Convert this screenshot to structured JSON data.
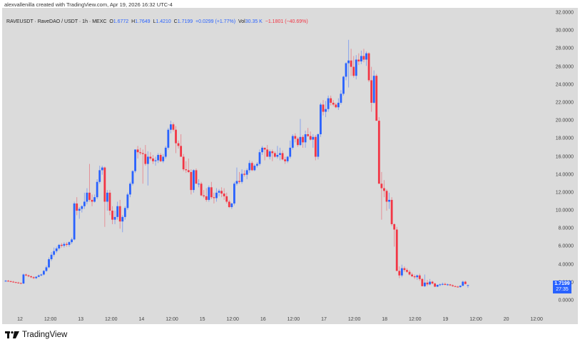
{
  "header": {
    "credit": "alexvallenilla created with TradingView.com, Apr 19, 2026 16:32 UTC-4"
  },
  "legend": {
    "symbol": "RAVEUSDT · RaveDAO / USDT · 1h · MEXC",
    "open_label": "O",
    "open": "1.6772",
    "high_label": "H",
    "high": "1.7649",
    "low_label": "L",
    "low": "1.4210",
    "close_label": "C",
    "close": "1.7199",
    "change": "+0.0299 (+1.77%)",
    "vol_label": "Vol",
    "vol": "30.35 K",
    "extra_change": "−1.1801 (−40.69%)"
  },
  "price_tag": {
    "price": "1.7199",
    "countdown": "27:35"
  },
  "colors": {
    "up": "#2962ff",
    "down": "#f23645",
    "background": "#dbdbdb"
  },
  "footer": {
    "brand": "TradingView"
  },
  "chart_data": {
    "type": "candlestick",
    "title": "RAVEUSDT · RaveDAO / USDT · 1h · MEXC",
    "xlabel": "",
    "ylabel": "",
    "ylim": [
      0,
      32
    ],
    "y_ticks": [
      "32.0000",
      "30.0000",
      "28.0000",
      "26.0000",
      "24.0000",
      "22.0000",
      "20.0000",
      "18.0000",
      "16.0000",
      "14.0000",
      "12.0000",
      "10.0000",
      "8.0000",
      "6.0000",
      "4.0000",
      "2.0000",
      "0.0000"
    ],
    "x_ticks": [
      "12",
      "12:00",
      "13",
      "12:00",
      "14",
      "12:00",
      "15",
      "12:00",
      "16",
      "12:00",
      "17",
      "12:00",
      "18",
      "12:00",
      "19",
      "12:00",
      "20",
      "12:00"
    ],
    "grid": false,
    "last_price": 1.7199,
    "ohlc": [
      [
        2.2,
        2.3,
        2.1,
        2.2
      ],
      [
        2.2,
        2.3,
        2.1,
        2.15
      ],
      [
        2.15,
        2.25,
        2.05,
        2.1
      ],
      [
        2.1,
        2.2,
        2.0,
        2.05
      ],
      [
        2.05,
        2.1,
        1.95,
        2.0
      ],
      [
        2.0,
        2.1,
        1.9,
        1.95
      ],
      [
        1.95,
        2.0,
        1.85,
        1.9
      ],
      [
        1.9,
        3.0,
        1.85,
        2.9
      ],
      [
        2.9,
        3.0,
        2.7,
        2.8
      ],
      [
        2.8,
        2.9,
        2.6,
        2.7
      ],
      [
        2.7,
        2.8,
        2.5,
        2.6
      ],
      [
        2.6,
        2.7,
        2.4,
        2.5
      ],
      [
        2.5,
        2.7,
        2.4,
        2.65
      ],
      [
        2.65,
        2.9,
        2.6,
        2.8
      ],
      [
        2.8,
        3.0,
        2.7,
        2.9
      ],
      [
        2.9,
        3.4,
        2.8,
        3.3
      ],
      [
        3.3,
        3.9,
        3.2,
        3.7
      ],
      [
        3.7,
        4.8,
        3.6,
        4.6
      ],
      [
        4.6,
        5.4,
        4.4,
        5.1
      ],
      [
        5.1,
        5.9,
        4.9,
        5.5
      ],
      [
        5.5,
        6.0,
        5.3,
        5.8
      ],
      [
        5.8,
        6.3,
        5.6,
        6.2
      ],
      [
        6.2,
        6.4,
        5.9,
        6.1
      ],
      [
        6.1,
        6.5,
        5.9,
        6.3
      ],
      [
        6.3,
        6.5,
        6.0,
        6.2
      ],
      [
        6.2,
        6.6,
        6.0,
        6.5
      ],
      [
        6.5,
        7.0,
        6.3,
        6.8
      ],
      [
        6.8,
        11.0,
        6.7,
        10.8
      ],
      [
        10.8,
        11.5,
        9.5,
        10.0
      ],
      [
        10.0,
        10.4,
        9.1,
        10.2
      ],
      [
        10.2,
        10.6,
        9.8,
        10.5
      ],
      [
        10.5,
        12.0,
        10.2,
        11.0
      ],
      [
        11.0,
        12.5,
        10.7,
        12.0
      ],
      [
        12.0,
        15.2,
        11.0,
        11.2
      ],
      [
        11.2,
        11.8,
        10.5,
        11.0
      ],
      [
        11.0,
        11.8,
        10.9,
        11.5
      ],
      [
        11.5,
        13.5,
        11.3,
        13.2
      ],
      [
        13.2,
        15.0,
        13.0,
        14.5
      ],
      [
        14.5,
        15.0,
        14.0,
        14.8
      ],
      [
        14.8,
        14.9,
        8.2,
        11.0
      ],
      [
        11.0,
        12.3,
        10.0,
        12.0
      ],
      [
        12.0,
        12.3,
        9.5,
        10.0
      ],
      [
        10.0,
        10.5,
        8.5,
        9.0
      ],
      [
        9.0,
        10.0,
        8.5,
        9.3
      ],
      [
        9.3,
        11.0,
        9.0,
        10.5
      ],
      [
        10.5,
        11.2,
        8.0,
        8.8
      ],
      [
        8.8,
        9.5,
        7.6,
        9.3
      ],
      [
        9.3,
        10.5,
        9.0,
        10.3
      ],
      [
        10.3,
        12.0,
        10.1,
        11.8
      ],
      [
        11.8,
        13.2,
        11.5,
        13.0
      ],
      [
        13.0,
        14.5,
        12.8,
        14.4
      ],
      [
        14.4,
        16.8,
        14.2,
        16.8
      ],
      [
        16.8,
        17.2,
        15.8,
        16.5
      ],
      [
        16.5,
        17.0,
        16.2,
        16.4
      ],
      [
        16.4,
        16.8,
        13.0,
        16.3
      ],
      [
        16.3,
        17.3,
        15.0,
        15.2
      ],
      [
        15.2,
        16.6,
        12.8,
        16.0
      ],
      [
        16.0,
        16.5,
        15.6,
        15.8
      ],
      [
        15.8,
        16.2,
        15.2,
        15.5
      ],
      [
        15.5,
        16.0,
        15.0,
        15.6
      ],
      [
        15.6,
        16.4,
        15.3,
        16.2
      ],
      [
        16.2,
        16.4,
        15.4,
        15.5
      ],
      [
        15.5,
        16.3,
        15.3,
        16.0
      ],
      [
        16.0,
        17.2,
        15.8,
        17.0
      ],
      [
        17.0,
        19.2,
        16.8,
        19.0
      ],
      [
        19.0,
        20.0,
        18.6,
        19.6
      ],
      [
        19.6,
        19.8,
        18.8,
        19.0
      ],
      [
        19.0,
        19.4,
        16.4,
        17.5
      ],
      [
        17.5,
        17.8,
        16.9,
        17.2
      ],
      [
        17.2,
        18.5,
        16.5,
        16.0
      ],
      [
        16.0,
        16.3,
        14.4,
        14.6
      ],
      [
        14.6,
        15.5,
        14.2,
        14.5
      ],
      [
        14.5,
        15.8,
        14.2,
        14.3
      ],
      [
        14.3,
        14.6,
        11.8,
        12.3
      ],
      [
        12.3,
        14.6,
        12.0,
        14.5
      ],
      [
        14.5,
        14.7,
        13.0,
        13.0
      ],
      [
        13.0,
        13.5,
        12.6,
        13.0
      ],
      [
        13.0,
        13.2,
        11.6,
        11.7
      ],
      [
        11.7,
        12.3,
        11.4,
        11.6
      ],
      [
        11.6,
        12.5,
        11.0,
        11.2
      ],
      [
        11.2,
        12.8,
        11.0,
        12.6
      ],
      [
        12.6,
        13.2,
        11.3,
        11.5
      ],
      [
        11.5,
        12.0,
        10.8,
        11.4
      ],
      [
        11.4,
        12.5,
        11.0,
        12.0
      ],
      [
        12.0,
        12.4,
        11.6,
        12.2
      ],
      [
        12.2,
        12.6,
        11.5,
        11.9
      ],
      [
        11.9,
        12.5,
        11.2,
        11.6
      ],
      [
        11.6,
        12.0,
        10.8,
        11.0
      ],
      [
        11.0,
        11.2,
        10.3,
        10.4
      ],
      [
        10.4,
        10.9,
        10.2,
        10.8
      ],
      [
        10.8,
        13.2,
        10.6,
        13.0
      ],
      [
        13.0,
        14.8,
        12.8,
        13.3
      ],
      [
        13.3,
        14.3,
        13.0,
        13.2
      ],
      [
        13.2,
        14.6,
        13.0,
        14.1
      ],
      [
        14.1,
        14.5,
        13.8,
        14.0
      ],
      [
        14.0,
        14.7,
        13.5,
        14.5
      ],
      [
        14.5,
        15.6,
        14.2,
        15.3
      ],
      [
        15.3,
        15.5,
        14.4,
        14.5
      ],
      [
        14.5,
        15.2,
        14.4,
        15.0
      ],
      [
        15.0,
        15.4,
        14.8,
        15.2
      ],
      [
        15.2,
        16.8,
        15.0,
        16.5
      ],
      [
        16.5,
        17.2,
        16.2,
        17.0
      ],
      [
        17.0,
        17.0,
        15.6,
        16.8
      ],
      [
        16.8,
        17.3,
        16.0,
        16.0
      ],
      [
        16.0,
        16.8,
        15.7,
        16.6
      ],
      [
        16.6,
        16.8,
        15.5,
        16.4
      ],
      [
        16.4,
        16.6,
        15.9,
        16.0
      ],
      [
        16.0,
        17.2,
        15.8,
        16.2
      ],
      [
        16.2,
        17.0,
        15.6,
        16.4
      ],
      [
        16.4,
        16.7,
        15.6,
        15.7
      ],
      [
        15.7,
        16.0,
        15.2,
        15.5
      ],
      [
        15.5,
        16.1,
        15.3,
        16.0
      ],
      [
        16.0,
        17.8,
        15.8,
        17.0
      ],
      [
        17.0,
        18.5,
        16.8,
        18.3
      ],
      [
        18.3,
        18.6,
        17.6,
        18.0
      ],
      [
        18.0,
        18.2,
        17.1,
        17.3
      ],
      [
        17.3,
        20.2,
        17.2,
        18.2
      ],
      [
        18.2,
        18.4,
        17.0,
        17.6
      ],
      [
        17.6,
        18.9,
        17.0,
        18.5
      ],
      [
        18.5,
        19.2,
        18.2,
        18.3
      ],
      [
        18.3,
        18.8,
        17.8,
        17.9
      ],
      [
        17.9,
        18.5,
        17.0,
        18.2
      ],
      [
        18.2,
        18.4,
        15.6,
        16.0
      ],
      [
        16.0,
        18.6,
        15.7,
        18.5
      ],
      [
        18.5,
        22.0,
        18.2,
        21.8
      ],
      [
        21.8,
        22.3,
        20.6,
        21.0
      ],
      [
        21.0,
        22.2,
        20.4,
        21.3
      ],
      [
        21.3,
        22.8,
        21.0,
        22.5
      ],
      [
        22.5,
        22.8,
        21.7,
        22.0
      ],
      [
        22.0,
        22.3,
        21.6,
        21.8
      ],
      [
        21.8,
        22.0,
        21.4,
        21.5
      ],
      [
        21.5,
        22.5,
        21.2,
        22.0
      ],
      [
        22.0,
        23.4,
        21.8,
        23.0
      ],
      [
        23.0,
        25.0,
        22.8,
        24.9
      ],
      [
        24.9,
        26.5,
        24.5,
        26.4
      ],
      [
        26.4,
        29.0,
        23.7,
        26.7
      ],
      [
        26.7,
        28.0,
        25.0,
        26.0
      ],
      [
        26.0,
        27.2,
        24.8,
        25.0
      ],
      [
        25.0,
        27.3,
        24.6,
        26.8
      ],
      [
        26.8,
        27.5,
        26.2,
        26.6
      ],
      [
        26.6,
        27.8,
        26.3,
        27.2
      ],
      [
        27.2,
        28.0,
        26.5,
        26.8
      ],
      [
        26.8,
        27.7,
        26.1,
        27.5
      ],
      [
        27.5,
        27.6,
        24.3,
        24.5
      ],
      [
        24.5,
        26.0,
        21.0,
        22.0
      ],
      [
        22.0,
        25.6,
        21.9,
        25.0
      ],
      [
        25.0,
        25.2,
        20.4,
        20.0
      ],
      [
        20.0,
        20.4,
        13.0,
        13.0
      ],
      [
        13.0,
        14.3,
        9.0,
        12.5
      ],
      [
        12.5,
        13.4,
        11.5,
        12.2
      ],
      [
        12.2,
        12.4,
        10.0,
        11.0
      ],
      [
        11.0,
        12.0,
        10.2,
        11.2
      ],
      [
        11.2,
        11.5,
        8.3,
        8.5
      ],
      [
        8.5,
        8.6,
        6.0,
        7.9
      ],
      [
        7.9,
        8.2,
        4.2,
        3.3
      ],
      [
        3.3,
        3.8,
        2.5,
        2.8
      ],
      [
        2.8,
        4.0,
        2.6,
        3.6
      ],
      [
        3.6,
        3.8,
        3.2,
        3.4
      ],
      [
        3.4,
        3.6,
        3.1,
        3.2
      ],
      [
        3.2,
        3.4,
        2.8,
        2.9
      ],
      [
        2.9,
        3.1,
        2.6,
        2.7
      ],
      [
        2.7,
        2.9,
        2.4,
        2.6
      ],
      [
        2.6,
        2.9,
        2.3,
        2.8
      ],
      [
        2.8,
        3.0,
        2.2,
        2.4
      ],
      [
        2.4,
        2.5,
        1.7,
        1.6
      ],
      [
        1.6,
        2.9,
        1.5,
        2.0
      ],
      [
        2.0,
        2.3,
        1.6,
        1.8
      ],
      [
        1.8,
        2.4,
        1.7,
        2.1
      ],
      [
        2.1,
        2.2,
        1.8,
        1.9
      ],
      [
        1.9,
        2.0,
        1.5,
        1.55
      ],
      [
        1.55,
        1.8,
        1.5,
        1.75
      ],
      [
        1.75,
        1.9,
        1.6,
        1.8
      ],
      [
        1.8,
        2.0,
        1.7,
        1.85
      ],
      [
        1.85,
        2.0,
        1.7,
        1.75
      ],
      [
        1.75,
        1.9,
        1.65,
        1.8
      ],
      [
        1.8,
        1.85,
        1.6,
        1.7
      ],
      [
        1.7,
        1.8,
        1.55,
        1.6
      ],
      [
        1.6,
        1.7,
        1.5,
        1.55
      ],
      [
        1.55,
        1.65,
        1.45,
        1.5
      ],
      [
        1.5,
        1.7,
        1.45,
        1.65
      ],
      [
        1.65,
        2.2,
        1.6,
        2.1
      ],
      [
        2.1,
        2.2,
        1.8,
        1.85
      ],
      [
        1.6772,
        1.7649,
        1.421,
        1.7199
      ]
    ]
  }
}
